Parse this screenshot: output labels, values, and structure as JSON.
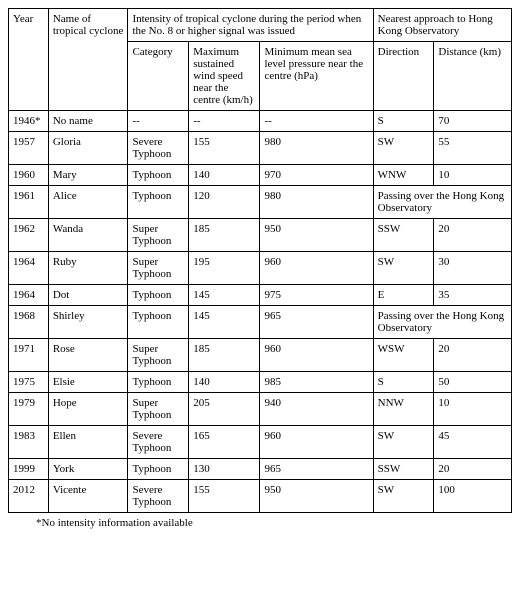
{
  "table": {
    "header_row1": {
      "year": "Year",
      "name": "Name of tropical cyclone",
      "intensity_group": "Intensity of tropical cyclone during the period when the No. 8 or higher signal was issued",
      "approach_group": "Nearest approach to Hong Kong Observatory"
    },
    "header_row2": {
      "category": "Category",
      "wind": "Maximum sustained wind speed near the centre (km/h)",
      "pressure": "Minimum mean sea level pressure near the centre (hPa)",
      "direction": "Direction",
      "distance": "Distance (km)"
    },
    "rows": [
      {
        "year": "1946*",
        "name": "No name",
        "category": "--",
        "wind": "--",
        "pressure": "--",
        "direction": "S",
        "distance": "70"
      },
      {
        "year": "1957",
        "name": "Gloria",
        "category": "Severe Typhoon",
        "wind": "155",
        "pressure": "980",
        "direction": "SW",
        "distance": "55"
      },
      {
        "year": "1960",
        "name": "Mary",
        "category": "Typhoon",
        "wind": "140",
        "pressure": "970",
        "direction": "WNW",
        "distance": "10"
      },
      {
        "year": "1961",
        "name": "Alice",
        "category": "Typhoon",
        "wind": "120",
        "pressure": "980",
        "approach_merged": "Passing over the Hong Kong Observatory"
      },
      {
        "year": "1962",
        "name": "Wanda",
        "category": "Super Typhoon",
        "wind": "185",
        "pressure": "950",
        "direction": "SSW",
        "distance": "20"
      },
      {
        "year": "1964",
        "name": "Ruby",
        "category": "Super Typhoon",
        "wind": "195",
        "pressure": "960",
        "direction": "SW",
        "distance": "30"
      },
      {
        "year": "1964",
        "name": "Dot",
        "category": "Typhoon",
        "wind": "145",
        "pressure": "975",
        "direction": "E",
        "distance": "35"
      },
      {
        "year": "1968",
        "name": "Shirley",
        "category": "Typhoon",
        "wind": "145",
        "pressure": "965",
        "approach_merged": "Passing over the Hong Kong Observatory"
      },
      {
        "year": "1971",
        "name": "Rose",
        "category": "Super Typhoon",
        "wind": "185",
        "pressure": "960",
        "direction": "WSW",
        "distance": "20"
      },
      {
        "year": "1975",
        "name": "Elsie",
        "category": "Typhoon",
        "wind": "140",
        "pressure": "985",
        "direction": "S",
        "distance": "50"
      },
      {
        "year": "1979",
        "name": "Hope",
        "category": "Super Typhoon",
        "wind": "205",
        "pressure": "940",
        "direction": "NNW",
        "distance": "10"
      },
      {
        "year": "1983",
        "name": "Ellen",
        "category": "Severe Typhoon",
        "wind": "165",
        "pressure": "960",
        "direction": "SW",
        "distance": "45"
      },
      {
        "year": "1999",
        "name": "York",
        "category": "Typhoon",
        "wind": "130",
        "pressure": "965",
        "direction": "SSW",
        "distance": "20"
      },
      {
        "year": "2012",
        "name": "Vicente",
        "category": "Severe Typhoon",
        "wind": "155",
        "pressure": "950",
        "direction": "SW",
        "distance": "100"
      }
    ]
  },
  "footnote": "*No intensity information available"
}
